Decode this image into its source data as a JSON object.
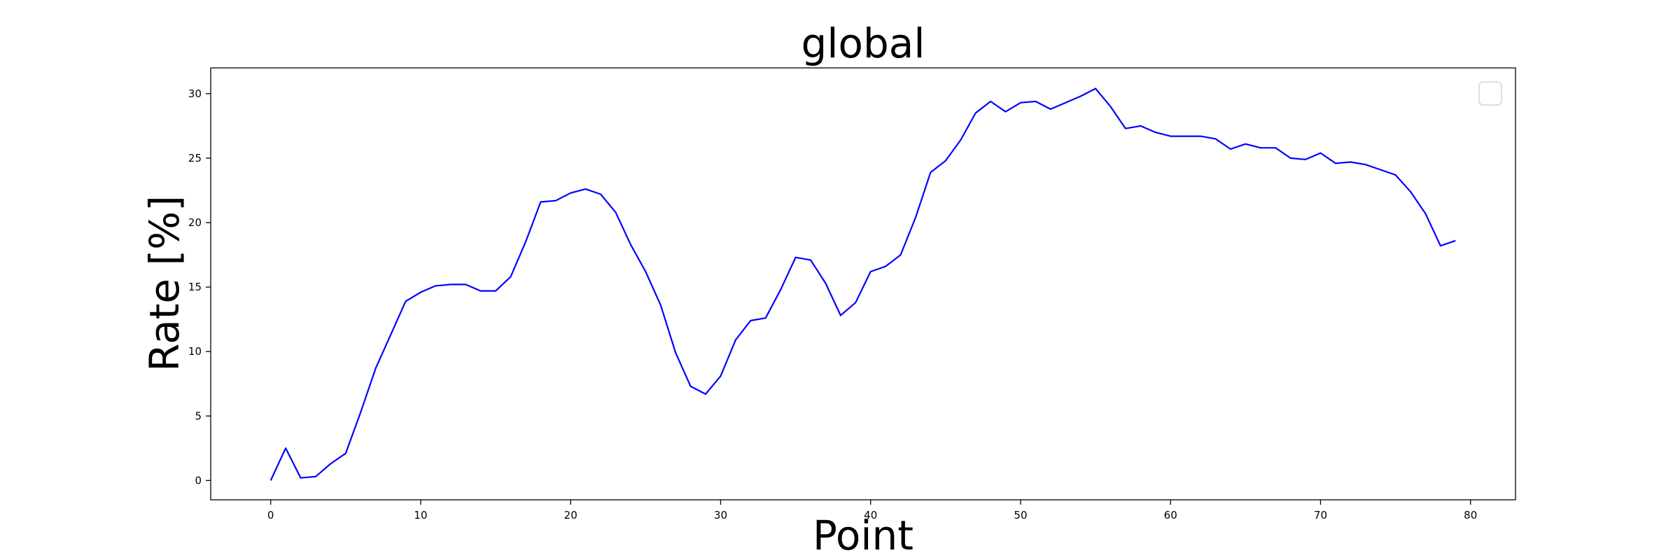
{
  "chart_data": {
    "type": "line",
    "title": "global",
    "xlabel": "Point",
    "ylabel": "Rate [%]",
    "xlim": [
      -4,
      83
    ],
    "ylim": [
      -1.5,
      32
    ],
    "xticks": [
      0,
      10,
      20,
      30,
      40,
      50,
      60,
      70,
      80
    ],
    "yticks": [
      0,
      5,
      10,
      15,
      20,
      25,
      30
    ],
    "grid": false,
    "legend": {
      "placement": "top-right",
      "entries": []
    },
    "series": [
      {
        "color": "#0000ff",
        "x": [
          0,
          1,
          2,
          3,
          4,
          5,
          6,
          7,
          8,
          9,
          10,
          11,
          12,
          13,
          14,
          15,
          16,
          17,
          18,
          19,
          20,
          21,
          22,
          23,
          24,
          25,
          26,
          27,
          28,
          29,
          30,
          31,
          32,
          33,
          34,
          35,
          36,
          37,
          38,
          39,
          40,
          41,
          42,
          43,
          44,
          45,
          46,
          47,
          48,
          49,
          50,
          51,
          52,
          53,
          54,
          55,
          56,
          57,
          58,
          59,
          60,
          61,
          62,
          63,
          64,
          65,
          66,
          67,
          68,
          69,
          70,
          71,
          72,
          73,
          74,
          75,
          76,
          77,
          78,
          79
        ],
        "values": [
          0,
          2.5,
          0.2,
          0.3,
          1.3,
          2.1,
          5.3,
          8.7,
          11.3,
          13.9,
          14.6,
          15.1,
          15.2,
          15.2,
          14.7,
          14.7,
          15.8,
          18.5,
          21.6,
          21.7,
          22.3,
          22.6,
          22.2,
          20.8,
          18.3,
          16.2,
          13.6,
          9.9,
          7.3,
          6.7,
          8.1,
          10.9,
          12.4,
          12.6,
          14.8,
          17.3,
          17.1,
          15.3,
          12.8,
          13.8,
          16.2,
          16.6,
          17.5,
          20.4,
          23.9,
          24.8,
          26.4,
          28.5,
          29.4,
          28.6,
          29.3,
          29.4,
          28.8,
          29.3,
          29.8,
          30.4,
          29.0,
          27.3,
          27.5,
          27.0,
          26.7,
          26.7,
          26.7,
          26.5,
          25.7,
          26.1,
          25.8,
          25.8,
          25.0,
          24.9,
          25.4,
          24.6,
          24.7,
          24.5,
          24.1,
          23.7,
          22.4,
          20.7,
          18.2,
          18.6
        ]
      }
    ]
  }
}
